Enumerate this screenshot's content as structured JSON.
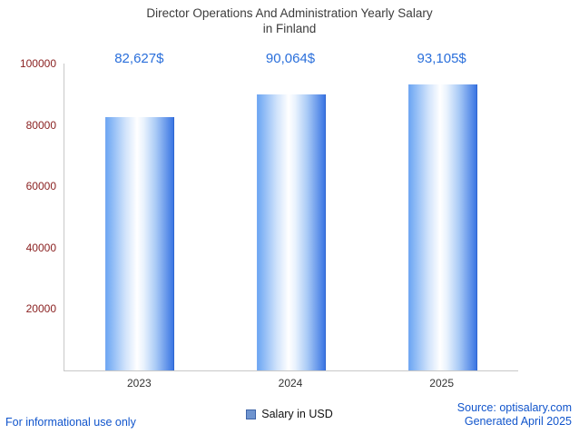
{
  "title": {
    "line1": "Director Operations And Administration Yearly Salary",
    "line2": "in Finland"
  },
  "chart_data": {
    "type": "bar",
    "categories": [
      "2023",
      "2024",
      "2025"
    ],
    "values": [
      82627,
      90064,
      93105
    ],
    "value_labels": [
      "82,627$",
      "90,064$",
      "93,105$"
    ],
    "series_name": "Salary in USD",
    "title": "Director Operations And Administration Yearly Salary in Finland",
    "xlabel": "",
    "ylabel": "",
    "ylim": [
      0,
      100000
    ],
    "yticks": [
      20000,
      40000,
      60000,
      80000,
      100000
    ],
    "ytick_labels": [
      "20000",
      "40000",
      "60000",
      "80000",
      "100000"
    ],
    "grid": false,
    "legend_position": "bottom",
    "bar_gradient": [
      "#6ea7f3",
      "#ffffff",
      "#3b76e3"
    ],
    "value_label_color": "#2a6fdb",
    "ytick_color": "#8b2222",
    "xtick_color": "#333333"
  },
  "legend": {
    "label": "Salary in USD",
    "marker_color": "#6f94cf"
  },
  "footer": {
    "left": "For informational use only",
    "source": "Source: optisalary.com",
    "generated": "Generated April 2025",
    "color": "#1155cc"
  }
}
